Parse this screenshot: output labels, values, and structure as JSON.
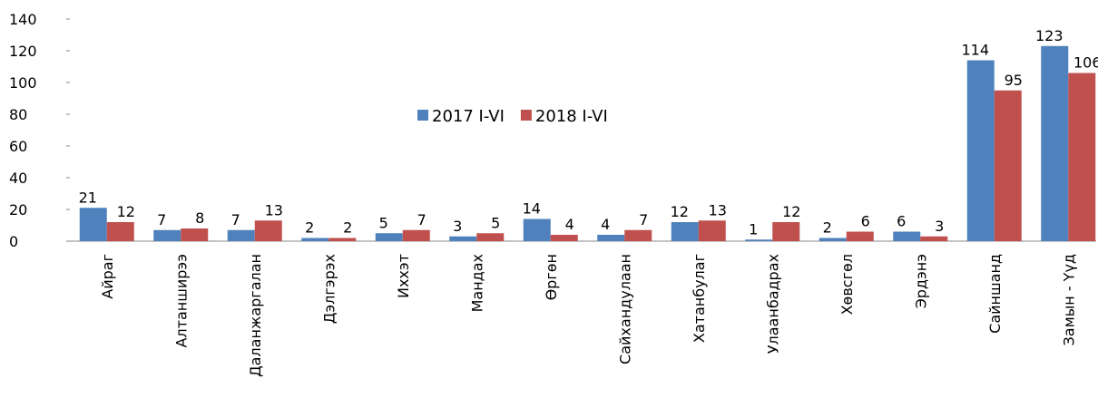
{
  "chart_data": {
    "type": "bar",
    "categories": [
      "Айраг",
      "Алтанширээ",
      "Даланжаргалан",
      "Дэлгэрэх",
      "Иххэт",
      "Мандах",
      "Өргөн",
      "Сайхандулаан",
      "Хатанбулаг",
      "Улаанбадрах",
      "Хөвсгөл",
      "Эрдэнэ",
      "Сайншанд",
      "Замын - Үүд"
    ],
    "series": [
      {
        "name": "2017 I-VI",
        "color": "#4f81bd",
        "values": [
          21,
          7,
          7,
          2,
          5,
          3,
          14,
          4,
          12,
          1,
          2,
          6,
          114,
          123
        ]
      },
      {
        "name": "2018 I-VI",
        "color": "#c0504d",
        "values": [
          12,
          8,
          13,
          2,
          7,
          5,
          4,
          7,
          13,
          12,
          6,
          3,
          95,
          106
        ]
      }
    ],
    "ylim": [
      0,
      140
    ],
    "yticks": [
      0,
      20,
      40,
      60,
      80,
      100,
      120,
      140
    ],
    "grid": false,
    "legend": "center"
  }
}
